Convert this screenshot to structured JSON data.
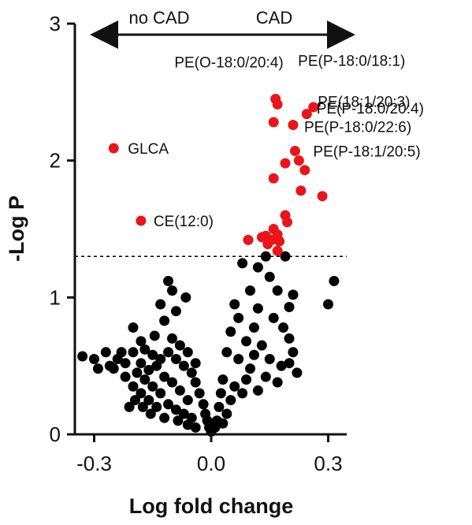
{
  "chart_data": {
    "type": "scatter",
    "title": "",
    "xlabel": "Log fold change",
    "ylabel": "-Log P",
    "xlim": [
      -0.35,
      0.35
    ],
    "ylim": [
      0,
      3
    ],
    "xticks": [
      "-0.3",
      "0.0",
      "0.3"
    ],
    "yticks": [
      "0",
      "1",
      "2",
      "3"
    ],
    "significance_threshold": 1.3,
    "direction_labels": {
      "left": "no CAD",
      "right": "CAD"
    },
    "colors": {
      "significant": "#e8161b",
      "nonsignificant": "#000000",
      "threshold_line": "#000000"
    },
    "significant_points": [
      {
        "label": "GLCA",
        "x": -0.25,
        "y": 2.09
      },
      {
        "label": "CE(12:0)",
        "x": -0.18,
        "y": 1.56
      },
      {
        "label": "PE(O-18:0/20:4)",
        "x": 0.165,
        "y": 2.45
      },
      {
        "label": "PE(P-18:0/18:1)",
        "x": 0.17,
        "y": 2.41
      },
      {
        "label": "PE(18:1/20:3)",
        "x": 0.245,
        "y": 2.34
      },
      {
        "label": "PE(P-18:0/20:4)",
        "x": 0.262,
        "y": 2.39
      },
      {
        "label": "PE(P-18:0/22:6)",
        "x": 0.21,
        "y": 2.26
      },
      {
        "label": "PE(P-18:1/20:5)",
        "x": 0.215,
        "y": 2.07
      },
      {
        "label": "",
        "x": 0.16,
        "y": 2.28
      },
      {
        "label": "",
        "x": 0.225,
        "y": 2.0
      },
      {
        "label": "",
        "x": 0.19,
        "y": 1.98
      },
      {
        "label": "",
        "x": 0.24,
        "y": 1.93
      },
      {
        "label": "",
        "x": 0.16,
        "y": 1.87
      },
      {
        "label": "",
        "x": 0.23,
        "y": 1.78
      },
      {
        "label": "",
        "x": 0.285,
        "y": 1.74
      },
      {
        "label": "",
        "x": 0.19,
        "y": 1.6
      },
      {
        "label": "",
        "x": 0.195,
        "y": 1.55
      },
      {
        "label": "",
        "x": 0.16,
        "y": 1.5
      },
      {
        "label": "",
        "x": 0.14,
        "y": 1.45
      },
      {
        "label": "",
        "x": 0.17,
        "y": 1.46
      },
      {
        "label": "",
        "x": 0.13,
        "y": 1.44
      },
      {
        "label": "",
        "x": 0.155,
        "y": 1.42
      },
      {
        "label": "",
        "x": 0.095,
        "y": 1.42
      },
      {
        "label": "",
        "x": 0.175,
        "y": 1.41
      },
      {
        "label": "",
        "x": 0.145,
        "y": 1.39
      },
      {
        "label": "",
        "x": 0.17,
        "y": 1.34
      }
    ],
    "nonsignificant_points": [
      {
        "x": 0.315,
        "y": 1.12
      },
      {
        "x": 0.3,
        "y": 0.95
      },
      {
        "x": 0.14,
        "y": 1.3
      },
      {
        "x": 0.19,
        "y": 1.3
      },
      {
        "x": 0.12,
        "y": 1.22
      },
      {
        "x": 0.08,
        "y": 1.25
      },
      {
        "x": 0.15,
        "y": 1.15
      },
      {
        "x": 0.1,
        "y": 1.05
      },
      {
        "x": 0.17,
        "y": 1.05
      },
      {
        "x": 0.21,
        "y": 1.02
      },
      {
        "x": 0.2,
        "y": 0.93
      },
      {
        "x": 0.12,
        "y": 0.92
      },
      {
        "x": 0.06,
        "y": 0.95
      },
      {
        "x": 0.07,
        "y": 0.85
      },
      {
        "x": 0.16,
        "y": 0.85
      },
      {
        "x": 0.185,
        "y": 0.78
      },
      {
        "x": 0.11,
        "y": 0.78
      },
      {
        "x": 0.05,
        "y": 0.75
      },
      {
        "x": 0.2,
        "y": 0.7
      },
      {
        "x": 0.21,
        "y": 0.6
      },
      {
        "x": 0.2,
        "y": 0.52
      },
      {
        "x": 0.22,
        "y": 0.45
      },
      {
        "x": 0.18,
        "y": 0.5
      },
      {
        "x": 0.13,
        "y": 0.65
      },
      {
        "x": 0.09,
        "y": 0.68
      },
      {
        "x": 0.15,
        "y": 0.55
      },
      {
        "x": 0.04,
        "y": 0.6
      },
      {
        "x": 0.07,
        "y": 0.55
      },
      {
        "x": 0.1,
        "y": 0.48
      },
      {
        "x": 0.03,
        "y": 0.4
      },
      {
        "x": 0.06,
        "y": 0.35
      },
      {
        "x": 0.08,
        "y": 0.3
      },
      {
        "x": 0.12,
        "y": 0.32
      },
      {
        "x": 0.05,
        "y": 0.25
      },
      {
        "x": 0.02,
        "y": 0.2
      },
      {
        "x": 0.04,
        "y": 0.15
      },
      {
        "x": 0.015,
        "y": 0.1
      },
      {
        "x": 0.01,
        "y": 0.05
      },
      {
        "x": 0.03,
        "y": 0.08
      },
      {
        "x": 0.025,
        "y": 0.3
      },
      {
        "x": 0.09,
        "y": 0.4
      },
      {
        "x": 0.11,
        "y": 0.58
      },
      {
        "x": 0.14,
        "y": 0.42
      },
      {
        "x": 0.17,
        "y": 0.38
      },
      {
        "x": 0.0,
        "y": 0.02
      },
      {
        "x": -0.005,
        "y": 0.05
      },
      {
        "x": 0.005,
        "y": 0.08
      },
      {
        "x": -0.11,
        "y": 1.12
      },
      {
        "x": -0.1,
        "y": 1.05
      },
      {
        "x": -0.13,
        "y": 0.95
      },
      {
        "x": -0.065,
        "y": 1.0
      },
      {
        "x": -0.09,
        "y": 0.9
      },
      {
        "x": -0.12,
        "y": 0.83
      },
      {
        "x": -0.2,
        "y": 0.78
      },
      {
        "x": -0.145,
        "y": 0.72
      },
      {
        "x": -0.18,
        "y": 0.68
      },
      {
        "x": -0.27,
        "y": 0.6
      },
      {
        "x": -0.33,
        "y": 0.57
      },
      {
        "x": -0.3,
        "y": 0.55
      },
      {
        "x": -0.29,
        "y": 0.48
      },
      {
        "x": -0.24,
        "y": 0.55
      },
      {
        "x": -0.22,
        "y": 0.52
      },
      {
        "x": -0.2,
        "y": 0.6
      },
      {
        "x": -0.17,
        "y": 0.62
      },
      {
        "x": -0.15,
        "y": 0.58
      },
      {
        "x": -0.13,
        "y": 0.55
      },
      {
        "x": -0.11,
        "y": 0.6
      },
      {
        "x": -0.09,
        "y": 0.55
      },
      {
        "x": -0.07,
        "y": 0.5
      },
      {
        "x": -0.05,
        "y": 0.45
      },
      {
        "x": -0.04,
        "y": 0.38
      },
      {
        "x": -0.03,
        "y": 0.3
      },
      {
        "x": -0.02,
        "y": 0.22
      },
      {
        "x": -0.015,
        "y": 0.15
      },
      {
        "x": -0.01,
        "y": 0.1
      },
      {
        "x": -0.19,
        "y": 0.45
      },
      {
        "x": -0.17,
        "y": 0.4
      },
      {
        "x": -0.15,
        "y": 0.35
      },
      {
        "x": -0.13,
        "y": 0.3
      },
      {
        "x": -0.12,
        "y": 0.42
      },
      {
        "x": -0.1,
        "y": 0.38
      },
      {
        "x": -0.08,
        "y": 0.32
      },
      {
        "x": -0.06,
        "y": 0.25
      },
      {
        "x": -0.2,
        "y": 0.35
      },
      {
        "x": -0.22,
        "y": 0.42
      },
      {
        "x": -0.25,
        "y": 0.48
      },
      {
        "x": -0.18,
        "y": 0.3
      },
      {
        "x": -0.16,
        "y": 0.25
      },
      {
        "x": -0.14,
        "y": 0.2
      },
      {
        "x": -0.11,
        "y": 0.22
      },
      {
        "x": -0.09,
        "y": 0.18
      },
      {
        "x": -0.07,
        "y": 0.15
      },
      {
        "x": -0.05,
        "y": 0.12
      },
      {
        "x": -0.21,
        "y": 0.2
      },
      {
        "x": -0.155,
        "y": 0.15
      },
      {
        "x": -0.12,
        "y": 0.12
      },
      {
        "x": -0.085,
        "y": 0.1
      },
      {
        "x": -0.06,
        "y": 0.07
      },
      {
        "x": -0.04,
        "y": 0.05
      },
      {
        "x": -0.26,
        "y": 0.5
      },
      {
        "x": -0.23,
        "y": 0.6
      },
      {
        "x": -0.1,
        "y": 0.7
      },
      {
        "x": -0.08,
        "y": 0.65
      },
      {
        "x": -0.06,
        "y": 0.6
      },
      {
        "x": -0.04,
        "y": 0.52
      },
      {
        "x": -0.14,
        "y": 0.5
      },
      {
        "x": -0.16,
        "y": 0.47
      },
      {
        "x": -0.18,
        "y": 0.52
      },
      {
        "x": -0.195,
        "y": 0.25
      },
      {
        "x": -0.175,
        "y": 0.2
      }
    ]
  }
}
